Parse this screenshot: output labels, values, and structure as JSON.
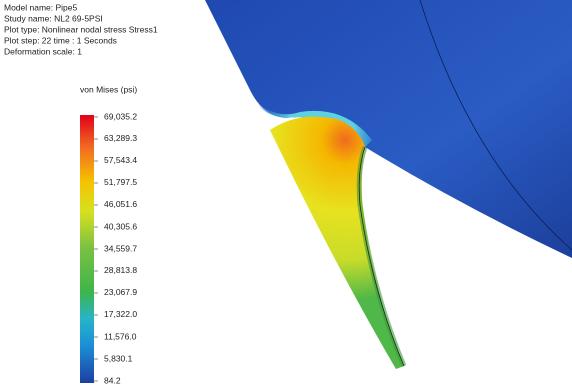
{
  "header": {
    "lines": [
      "Model name: Pipe5",
      "Study name: NL2 69-5PSI",
      "Plot type: Nonlinear nodal stress Stress1",
      "Plot step: 22   time : 1 Seconds",
      "Deformation scale: 1"
    ]
  },
  "colorbar": {
    "title": "von Mises (psi)",
    "ticks": [
      {
        "value": 69035.2,
        "label": "69,035.2"
      },
      {
        "value": 63289.3,
        "label": "63,289.3"
      },
      {
        "value": 57543.4,
        "label": "57,543.4"
      },
      {
        "value": 51797.5,
        "label": "51,797.5"
      },
      {
        "value": 46051.6,
        "label": "46,051.6"
      },
      {
        "value": 40305.6,
        "label": "40,305.6"
      },
      {
        "value": 34559.7,
        "label": "34,559.7"
      },
      {
        "value": 28813.8,
        "label": "28,813.8"
      },
      {
        "value": 23067.9,
        "label": "23,067.9"
      },
      {
        "value": 17322.0,
        "label": "17,322.0"
      },
      {
        "value": 11576.0,
        "label": "11,576.0"
      },
      {
        "value": 5830.1,
        "label": "5,830.1"
      },
      {
        "value": 84.2,
        "label": "84.2"
      }
    ]
  }
}
